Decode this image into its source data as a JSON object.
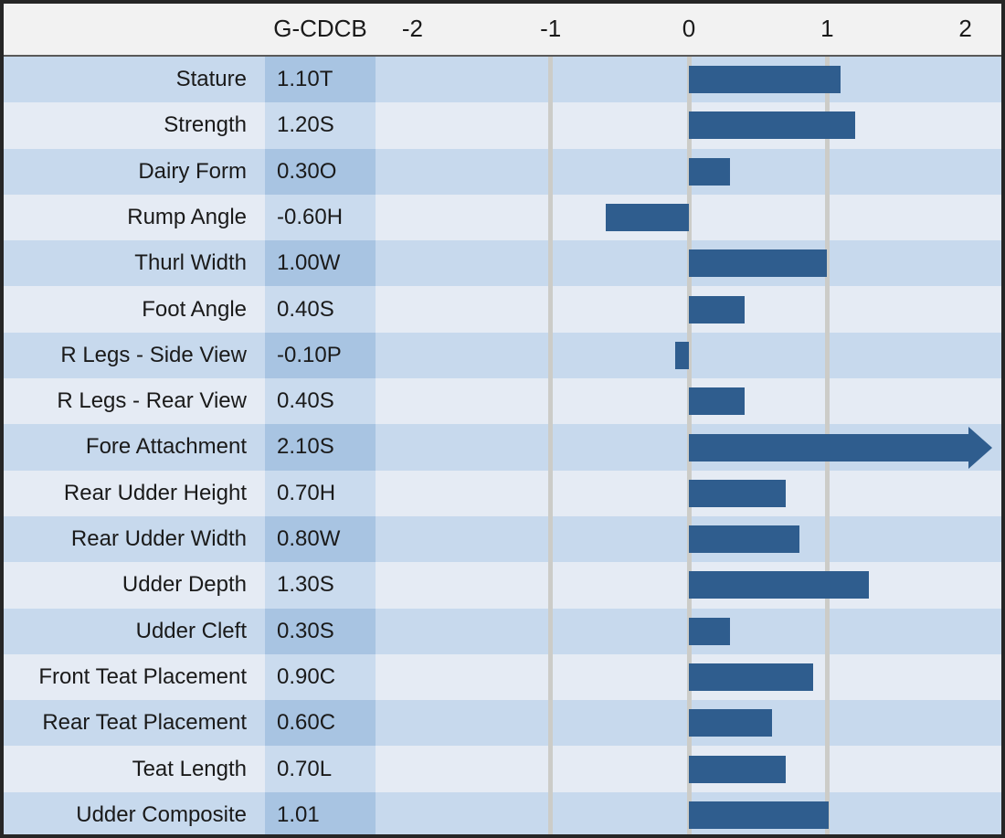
{
  "header": {
    "value_column_label": "G-CDCB"
  },
  "colors": {
    "bar": "#2F5D8E",
    "row_dark": "#C7D9ED",
    "row_light": "#E5EBF4",
    "value_cell_dark": "#A8C4E2",
    "value_cell_light": "#CADBEE",
    "gridline": "#CCCCC8",
    "header_bg": "#F2F2F2",
    "header_separator": "#595959",
    "frame": "#262626",
    "text": "#1A1A1A"
  },
  "chart_data": {
    "type": "bar",
    "orientation": "horizontal",
    "title": "",
    "value_column_header": "G-CDCB",
    "xlabel": "",
    "ylabel": "",
    "xlim": [
      -2.27,
      2.26
    ],
    "axis_ticks": [
      -2,
      -1,
      0,
      1,
      2
    ],
    "gridlines_at": [
      -1,
      0,
      1
    ],
    "grid": "on",
    "categories": [
      "Stature",
      "Strength",
      "Dairy Form",
      "Rump Angle",
      "Thurl Width",
      "Foot Angle",
      "R Legs - Side View",
      "R Legs - Rear View",
      "Fore Attachment",
      "Rear Udder Height",
      "Rear Udder Width",
      "Udder Depth",
      "Udder Cleft",
      "Front Teat Placement",
      "Rear Teat Placement",
      "Teat Length",
      "Udder Composite"
    ],
    "values": [
      1.1,
      1.2,
      0.3,
      -0.6,
      1.0,
      0.4,
      -0.1,
      0.4,
      2.1,
      0.7,
      0.8,
      1.3,
      0.3,
      0.9,
      0.6,
      0.7,
      1.01
    ],
    "display_values": [
      "1.10T",
      "1.20S",
      "0.30O",
      "-0.60H",
      "1.00W",
      "0.40S",
      "-0.10P",
      "0.40S",
      "2.10S",
      "0.70H",
      "0.80W",
      "1.30S",
      "0.30S",
      "0.90C",
      "0.60C",
      "0.70L",
      "1.01"
    ],
    "off_scale_arrow_categories": [
      "Fore Attachment"
    ]
  }
}
